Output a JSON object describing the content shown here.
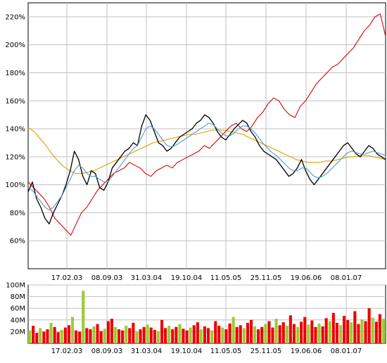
{
  "chart_data": [
    {
      "type": "line",
      "panel": "price",
      "x_ticks": [
        "17.02.03",
        "08.09.03",
        "31.03.04",
        "19.10.04",
        "11.05.05",
        "25.11.05",
        "19.06.06",
        "08.01.07"
      ],
      "y_ticks": [
        "60%",
        "80%",
        "100%",
        "120%",
        "140%",
        "160%",
        "180%",
        "200%",
        "220%"
      ],
      "ylim": [
        40,
        230
      ],
      "grid": true,
      "series_colors": {
        "stock": "#000000",
        "index": "#dd0000",
        "ma_short": "#5599cc",
        "ma_long": "#e0a000"
      },
      "series": [
        {
          "key": "stock",
          "values": [
            95,
            102,
            90,
            84,
            76,
            72,
            80,
            86,
            92,
            100,
            110,
            124,
            118,
            106,
            100,
            110,
            108,
            98,
            96,
            102,
            112,
            116,
            120,
            124,
            126,
            130,
            128,
            142,
            150,
            146,
            138,
            130,
            128,
            124,
            126,
            130,
            134,
            136,
            138,
            140,
            144,
            146,
            150,
            148,
            144,
            138,
            134,
            132,
            136,
            140,
            143,
            146,
            144,
            138,
            134,
            128,
            124,
            122,
            120,
            118,
            114,
            110,
            106,
            108,
            112,
            118,
            110,
            104,
            100,
            104,
            108,
            112,
            116,
            120,
            124,
            128,
            130,
            126,
            122,
            120,
            124,
            128,
            126,
            122,
            120,
            118
          ]
        },
        {
          "key": "index",
          "values": [
            102,
            98,
            94,
            90,
            84,
            76,
            72,
            68,
            64,
            72,
            80,
            84,
            90,
            96,
            100,
            104,
            108,
            110,
            112,
            116,
            114,
            112,
            108,
            106,
            110,
            112,
            114,
            112,
            116,
            118,
            120,
            122,
            124,
            128,
            126,
            130,
            134,
            138,
            142,
            144,
            140,
            138,
            142,
            148,
            152,
            158,
            162,
            160,
            154,
            150,
            148,
            156,
            160,
            166,
            172,
            176,
            180,
            184,
            186,
            190,
            194,
            198,
            204,
            210,
            214,
            220,
            222,
            206
          ]
        },
        {
          "key": "ma_short",
          "values": [
            98,
            96,
            92,
            88,
            84,
            82,
            84,
            88,
            92,
            98,
            104,
            110,
            114,
            112,
            108,
            106,
            106,
            104,
            102,
            102,
            106,
            110,
            114,
            118,
            122,
            126,
            128,
            134,
            140,
            142,
            140,
            136,
            132,
            128,
            127,
            128,
            130,
            132,
            134,
            136,
            138,
            140,
            142,
            144,
            143,
            140,
            137,
            135,
            135,
            137,
            140,
            142,
            142,
            140,
            137,
            133,
            129,
            126,
            123,
            121,
            118,
            115,
            112,
            110,
            110,
            112,
            112,
            109,
            106,
            105,
            106,
            108,
            111,
            114,
            117,
            120,
            123,
            124,
            123,
            122,
            122,
            123,
            124,
            123,
            122,
            121
          ]
        },
        {
          "key": "ma_long",
          "values": [
            141,
            138,
            133,
            128,
            122,
            117,
            113,
            110,
            108,
            108,
            109,
            110,
            112,
            114,
            116,
            118,
            120,
            122,
            124,
            126,
            128,
            130,
            131,
            132,
            133,
            134,
            135,
            136,
            136,
            137,
            138,
            139,
            139,
            139,
            138,
            137,
            136,
            134,
            132,
            130,
            128,
            126,
            124,
            122,
            120,
            118,
            117,
            116,
            116,
            116,
            117,
            117,
            118,
            119,
            120,
            120,
            121,
            121,
            120,
            119,
            118
          ]
        }
      ]
    },
    {
      "type": "bar",
      "panel": "volume",
      "x_ticks": [
        "17.02.03",
        "08.09.03",
        "31.03.04",
        "19.10.04",
        "11.05.05",
        "25.11.05",
        "19.06.06",
        "08.01.07"
      ],
      "y_ticks": [
        "20M",
        "40M",
        "60M",
        "80M",
        "100M"
      ],
      "ylim": [
        0,
        100
      ],
      "grid": true,
      "bar_colors": [
        "#ee0000",
        "#99cc33"
      ],
      "volume_values": [
        22,
        30,
        18,
        26,
        20,
        24,
        35,
        28,
        19,
        23,
        27,
        31,
        45,
        22,
        20,
        90,
        26,
        24,
        29,
        33,
        21,
        25,
        38,
        42,
        28,
        24,
        22,
        30,
        26,
        35,
        20,
        24,
        28,
        32,
        27,
        23,
        21,
        40,
        26,
        30,
        24,
        28,
        33,
        25,
        22,
        27,
        31,
        36,
        24,
        29,
        26,
        22,
        38,
        30,
        27,
        24,
        34,
        45,
        28,
        31,
        26,
        35,
        40,
        29,
        24,
        28,
        33,
        38,
        27,
        42,
        31,
        36,
        30,
        48,
        33,
        28,
        37,
        45,
        32,
        39,
        28,
        34,
        29,
        43,
        38,
        52,
        35,
        31,
        47,
        40,
        36,
        55,
        33,
        41,
        38,
        60,
        44,
        37,
        50,
        42
      ]
    }
  ]
}
